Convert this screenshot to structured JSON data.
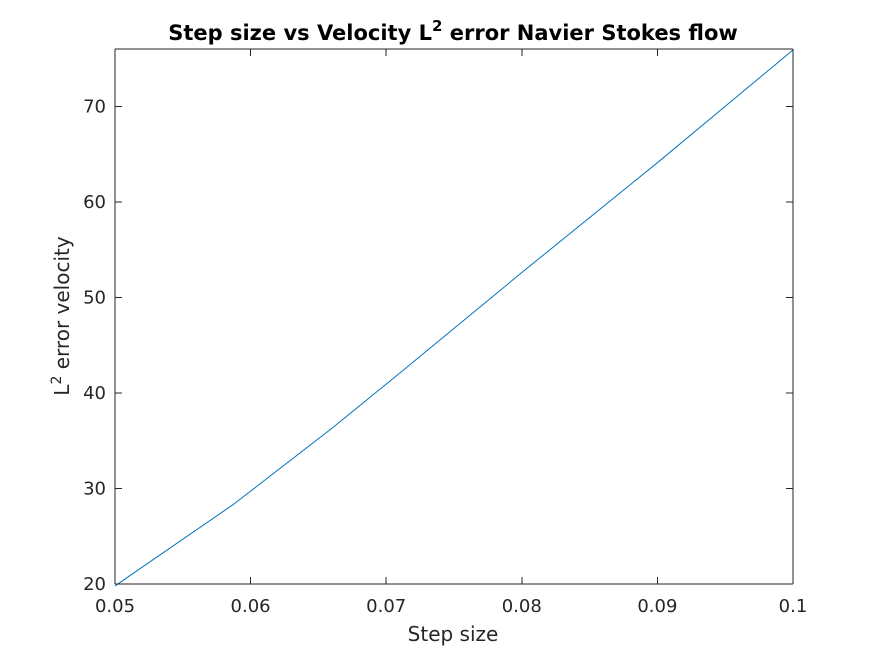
{
  "chart_data": {
    "type": "line",
    "title": "Step size vs Velocity L",
    "title_superscript": "2",
    "title_suffix": " error Navier Stokes flow",
    "xlabel": "Step size",
    "ylabel": "L",
    "ylabel_superscript": "2",
    "ylabel_suffix": " error velocity",
    "xlim": [
      0.05,
      0.1
    ],
    "ylim": [
      20,
      76
    ],
    "x_ticks": [
      0.05,
      0.06,
      0.07,
      0.08,
      0.09,
      0.1
    ],
    "x_tick_labels": [
      "0.05",
      "0.06",
      "0.07",
      "0.08",
      "0.09",
      "0.1"
    ],
    "y_ticks": [
      20,
      30,
      40,
      50,
      60,
      70
    ],
    "y_tick_labels": [
      "20",
      "30",
      "40",
      "50",
      "60",
      "70"
    ],
    "grid": false,
    "series": [
      {
        "color": "#0072BD",
        "x": [
          0.05,
          0.0587,
          0.066,
          0.0705,
          0.08,
          0.09,
          0.1
        ],
        "y": [
          19.8,
          28.3,
          36.3,
          41.5,
          52.6,
          64.1,
          75.9
        ]
      }
    ]
  }
}
